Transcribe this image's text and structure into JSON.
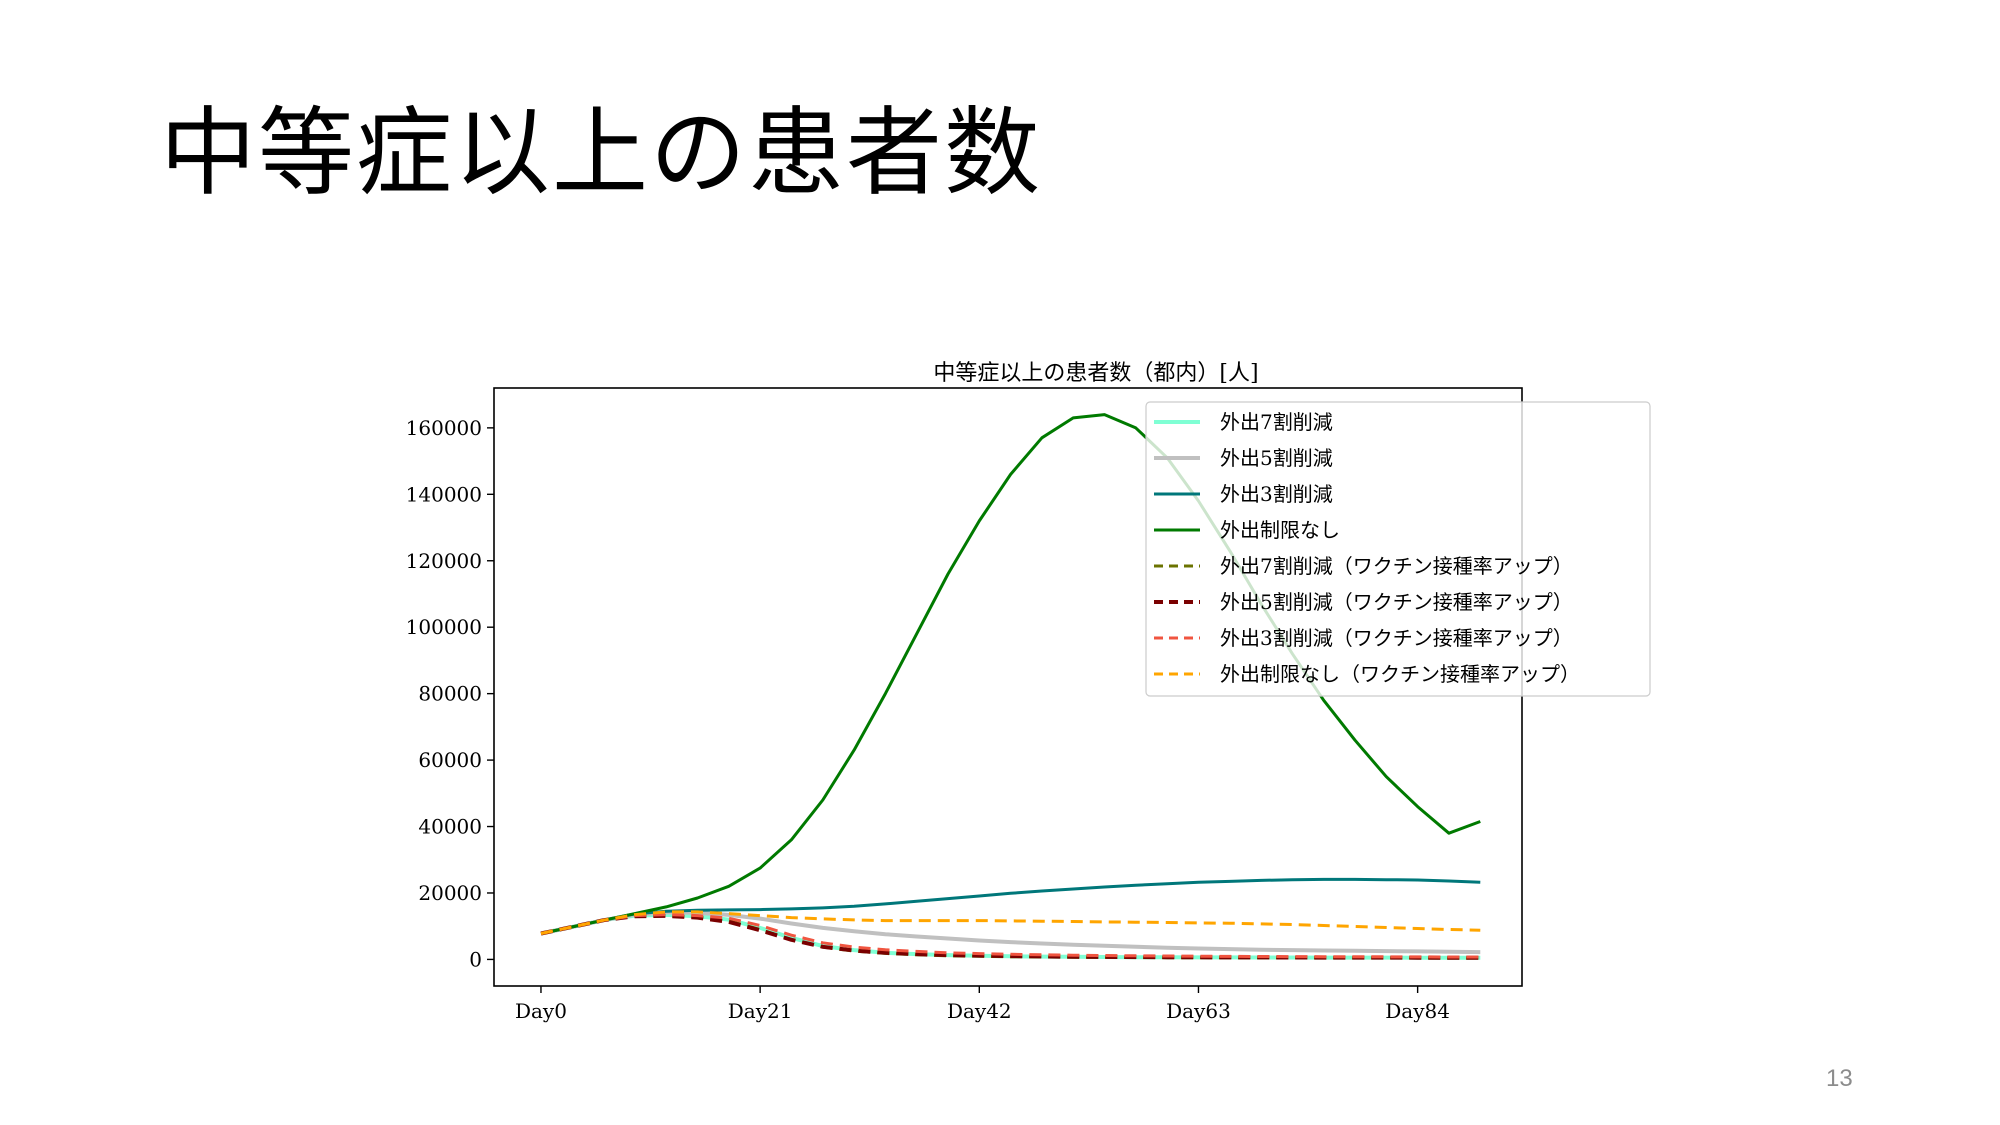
{
  "slide": {
    "title": "中等症以上の患者数",
    "page_number": "13"
  },
  "chart_data": {
    "type": "line",
    "title": "中等症以上の患者数（都内）[人]",
    "xlabel": "",
    "ylabel": "",
    "x_tick_labels": [
      "Day0",
      "Day21",
      "Day42",
      "Day63",
      "Day84"
    ],
    "x_ticks": [
      0,
      21,
      42,
      63,
      84
    ],
    "xlim": [
      -4.5,
      94
    ],
    "y_ticks": [
      0,
      20000,
      40000,
      60000,
      80000,
      100000,
      120000,
      140000,
      160000
    ],
    "y_tick_labels": [
      "0",
      "20000",
      "40000",
      "60000",
      "80000",
      "100000",
      "120000",
      "140000",
      "160000"
    ],
    "ylim": [
      -8000,
      172000
    ],
    "grid": false,
    "legend_position": "top-right",
    "x": [
      0,
      3,
      6,
      9,
      12,
      15,
      18,
      21,
      24,
      27,
      30,
      33,
      36,
      39,
      42,
      45,
      48,
      51,
      54,
      57,
      60,
      63,
      66,
      69,
      72,
      75,
      78,
      81,
      84,
      87,
      90
    ],
    "series": [
      {
        "name": "外出7割削減",
        "color": "#7fffd4",
        "dash": "solid",
        "width": 4,
        "values": [
          7800,
          9800,
          11800,
          13200,
          13400,
          13000,
          12000,
          9500,
          6500,
          4000,
          2800,
          2000,
          1600,
          1300,
          1100,
          950,
          850,
          780,
          720,
          680,
          640,
          620,
          600,
          580,
          570,
          560,
          550,
          540,
          530,
          520,
          510
        ]
      },
      {
        "name": "外出5割削減",
        "color": "#c0c0c0",
        "dash": "solid",
        "width": 4,
        "values": [
          7800,
          9800,
          11800,
          13500,
          14200,
          14000,
          13400,
          12300,
          10800,
          9500,
          8500,
          7600,
          6900,
          6300,
          5700,
          5200,
          4800,
          4400,
          4100,
          3800,
          3500,
          3300,
          3100,
          2900,
          2800,
          2700,
          2600,
          2500,
          2400,
          2300,
          2200
        ]
      },
      {
        "name": "外出3割削減",
        "color": "#00777a",
        "dash": "solid",
        "width": 3,
        "values": [
          7800,
          9800,
          11800,
          13700,
          14500,
          14800,
          14900,
          15000,
          15200,
          15500,
          16000,
          16700,
          17500,
          18300,
          19100,
          19900,
          20600,
          21200,
          21800,
          22300,
          22800,
          23200,
          23500,
          23800,
          24000,
          24100,
          24100,
          24000,
          23900,
          23600,
          23200
        ]
      },
      {
        "name": "外出制限なし",
        "color": "#007a00",
        "dash": "solid",
        "width": 3,
        "values": [
          7800,
          9800,
          11800,
          13800,
          15800,
          18500,
          22000,
          27500,
          36000,
          48000,
          63000,
          80000,
          98000,
          116000,
          132000,
          146000,
          157000,
          163000,
          164000,
          160000,
          151000,
          138000,
          123000,
          107000,
          92000,
          78000,
          66000,
          55000,
          46000,
          38000,
          41500
        ]
      },
      {
        "name": "外出7割削減（ワクチン接種率アップ）",
        "color": "#6b7300",
        "dash": "dashed",
        "width": 3,
        "values": [
          7800,
          9800,
          11800,
          13100,
          13200,
          12700,
          11600,
          9000,
          6000,
          3700,
          2500,
          1800,
          1400,
          1100,
          950,
          820,
          720,
          650,
          600,
          560,
          530,
          510,
          490,
          470,
          460,
          450,
          440,
          430,
          420,
          410,
          400
        ]
      },
      {
        "name": "外出5割削減（ワクチン接種率アップ）",
        "color": "#7a0000",
        "dash": "dashed",
        "width": 4,
        "values": [
          7800,
          9800,
          11800,
          13000,
          13100,
          12600,
          11300,
          8800,
          5900,
          3800,
          2700,
          2000,
          1600,
          1300,
          1150,
          1000,
          900,
          830,
          770,
          720,
          680,
          650,
          620,
          600,
          580,
          560,
          550,
          540,
          530,
          520,
          510
        ]
      },
      {
        "name": "外出3割削減（ワクチン接種率アップ）",
        "color": "#f05540",
        "dash": "dashed",
        "width": 3,
        "values": [
          7800,
          9800,
          11800,
          13200,
          13500,
          13200,
          12400,
          10200,
          7300,
          5000,
          3700,
          2900,
          2400,
          2000,
          1750,
          1550,
          1400,
          1280,
          1180,
          1100,
          1030,
          970,
          920,
          880,
          850,
          820,
          800,
          780,
          760,
          740,
          720
        ]
      },
      {
        "name": "外出制限なし（ワクチン接種率アップ）",
        "color": "#ffa500",
        "dash": "dashed",
        "width": 3,
        "values": [
          7800,
          9800,
          11800,
          13500,
          14300,
          14300,
          13800,
          13200,
          12600,
          12200,
          11900,
          11700,
          11700,
          11700,
          11700,
          11600,
          11500,
          11400,
          11300,
          11200,
          11100,
          11000,
          10900,
          10700,
          10500,
          10200,
          9900,
          9600,
          9300,
          9000,
          8800
        ]
      }
    ]
  }
}
